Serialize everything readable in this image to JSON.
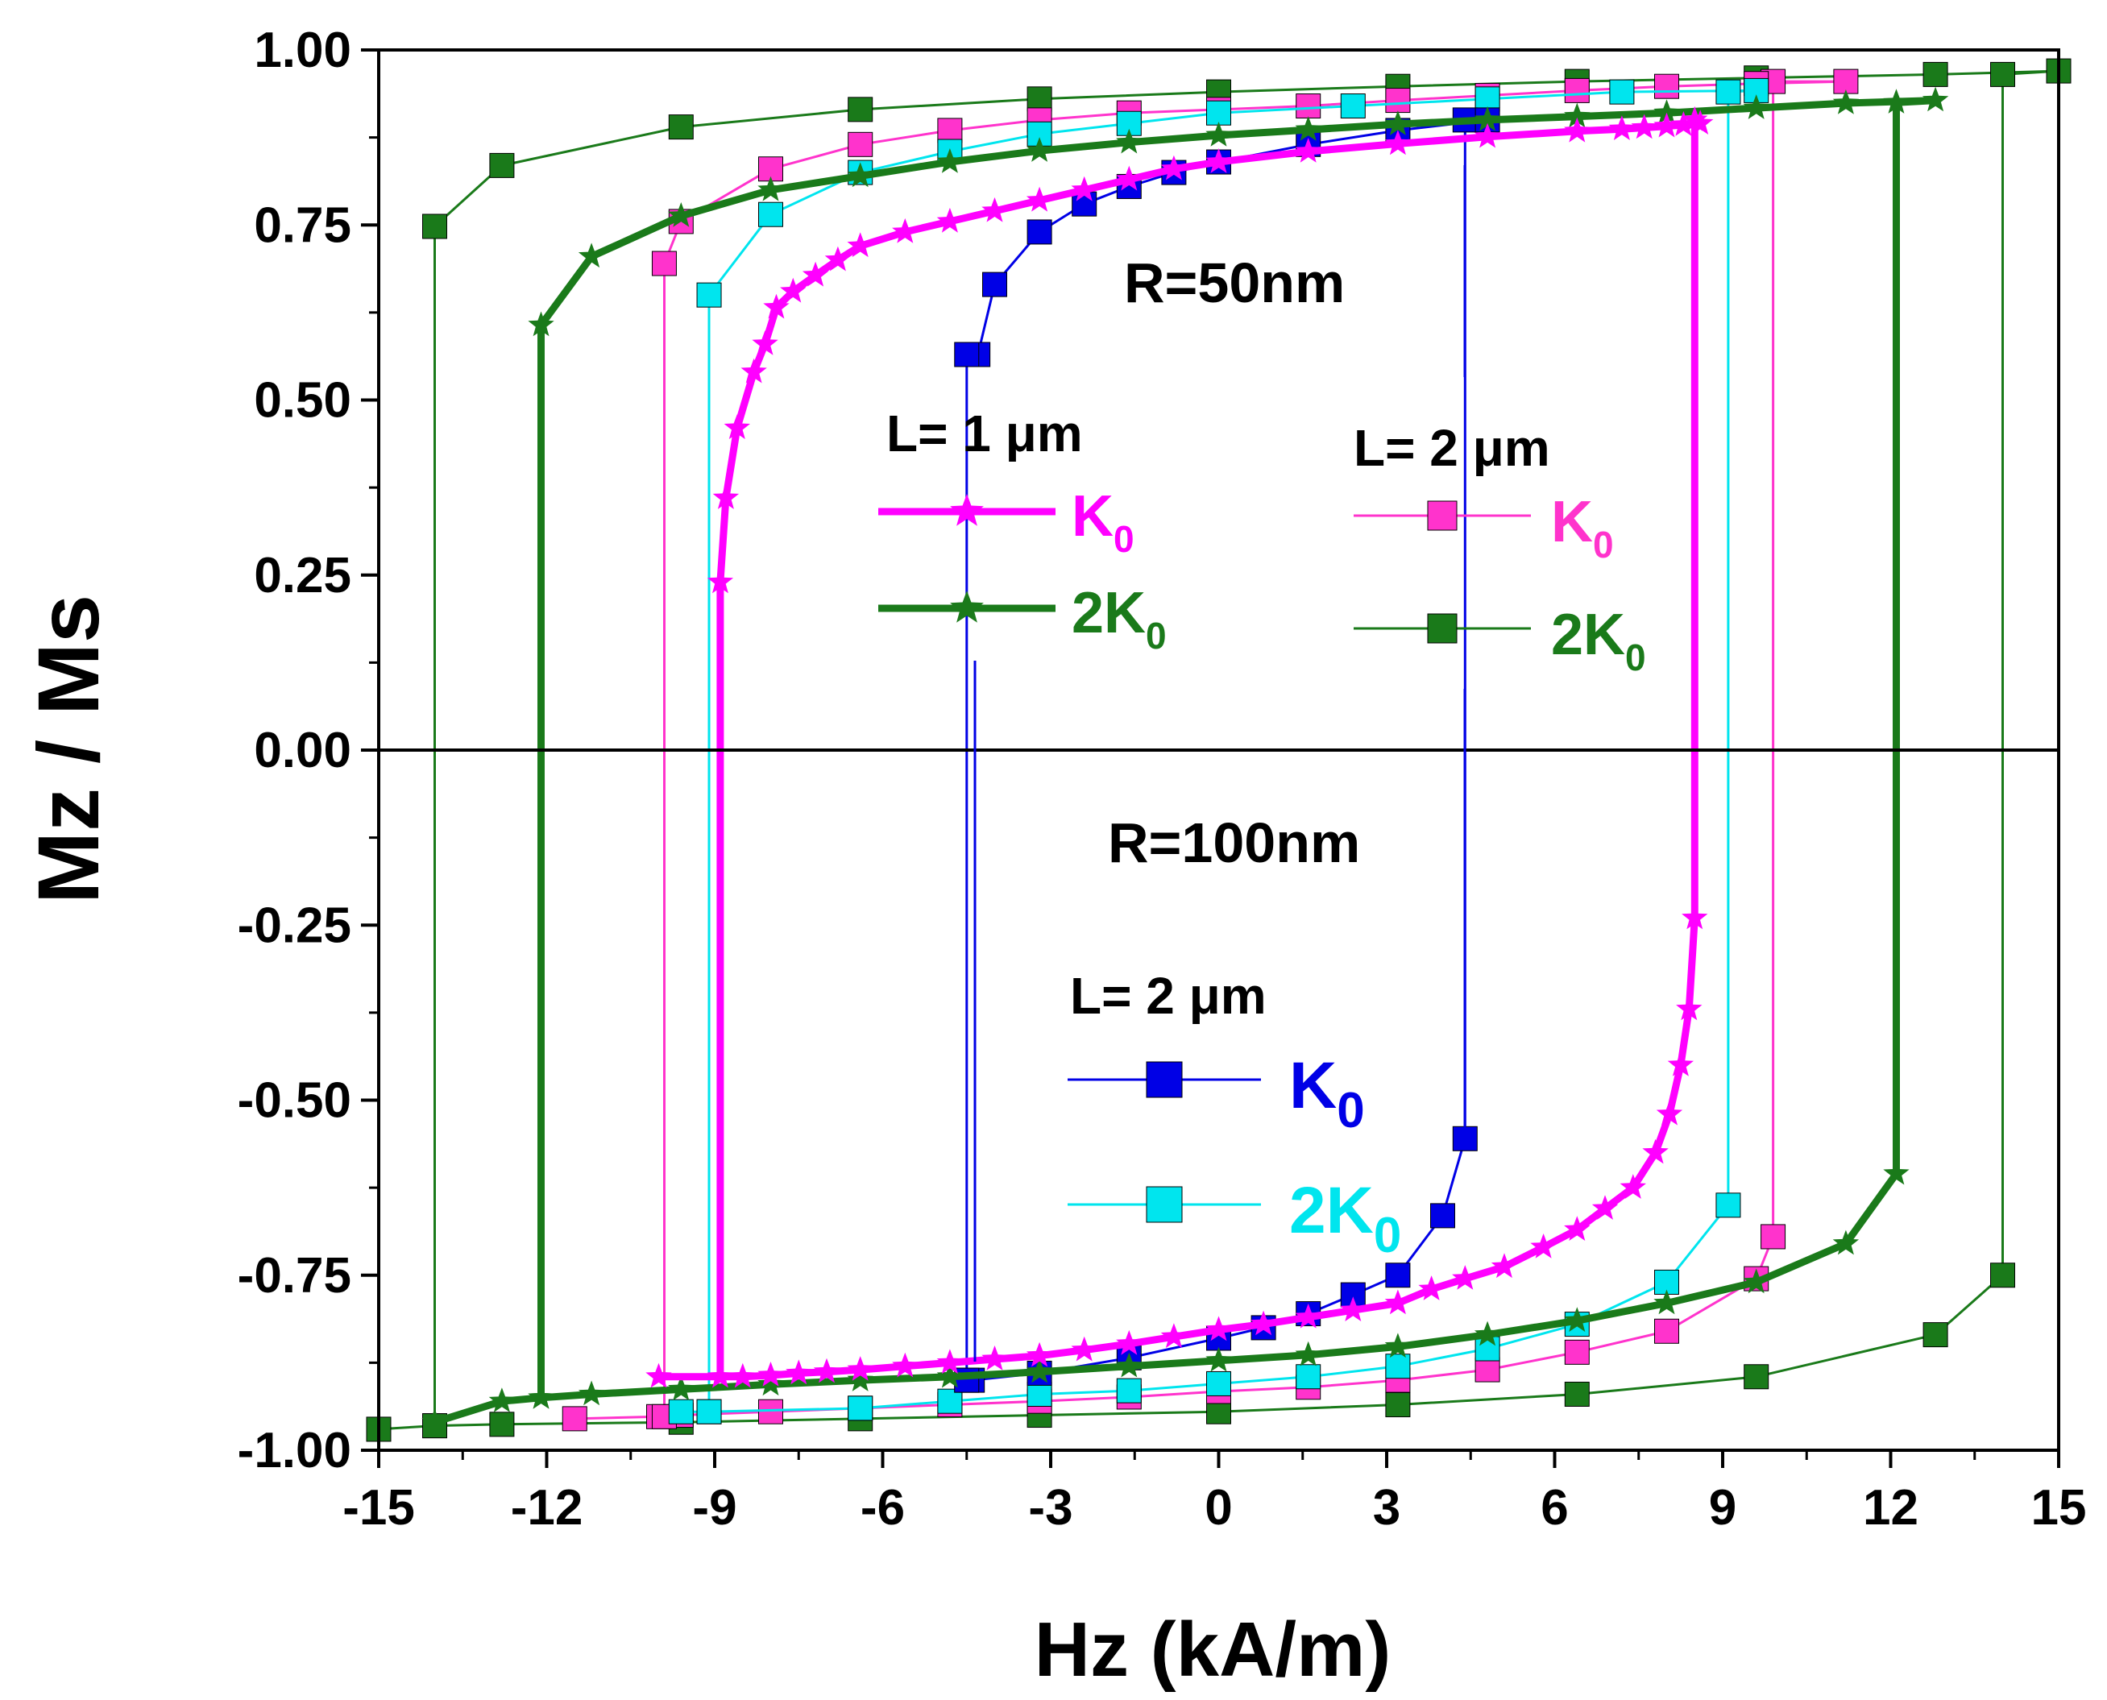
{
  "chart_data": {
    "type": "line",
    "xlabel": "Hz (kA/m)",
    "ylabel": "Mz / Ms",
    "xlim": [
      -15,
      15
    ],
    "ylim": [
      -1.0,
      1.0
    ],
    "xticks": [
      -15,
      -12,
      -9,
      -6,
      -3,
      0,
      3,
      6,
      9,
      12,
      15
    ],
    "xtick_labels": [
      "-15",
      "-12",
      "-9",
      "-6",
      "-3",
      "0",
      "3",
      "6",
      "9",
      "12",
      "15"
    ],
    "yticks": [
      1.0,
      0.75,
      0.5,
      0.25,
      0.0,
      -0.25,
      -0.5,
      -0.75,
      -1.0
    ],
    "ytick_labels": [
      "1.00",
      "0.75",
      "0.50",
      "0.25",
      "0.00",
      "-0.25",
      "-0.50",
      "-0.75",
      "-1.00"
    ],
    "annotations": {
      "r50": "R=50nm",
      "r100": "R=100nm",
      "group1_title": "L= 1 μm",
      "group2_title": "L= 2 μm",
      "group3_title": "L= 2 μm"
    },
    "series": [
      {
        "name": "K0",
        "group": "R=50nm, L=1um",
        "color": "#ff00ff",
        "marker": "star",
        "stroke": 9,
        "label_main": "K",
        "label_sub": "0",
        "points": [
          [
            -10,
            -0.895
          ],
          [
            -8.5,
            -0.895
          ],
          [
            -8,
            -0.893
          ],
          [
            -7.5,
            -0.89
          ],
          [
            -7,
            -0.888
          ],
          [
            -6.4,
            -0.885
          ],
          [
            -5.6,
            -0.88
          ],
          [
            -4.8,
            -0.875
          ],
          [
            -4,
            -0.87
          ],
          [
            -3.2,
            -0.865
          ],
          [
            -2.4,
            -0.857
          ],
          [
            -1.6,
            -0.848
          ],
          [
            -0.8,
            -0.838
          ],
          [
            0,
            -0.828
          ],
          [
            0.8,
            -0.82
          ],
          [
            1.6,
            -0.81
          ],
          [
            2.4,
            -0.8
          ],
          [
            3.2,
            -0.79
          ],
          [
            3.8,
            -0.77
          ],
          [
            4.4,
            -0.755
          ],
          [
            5.1,
            -0.738
          ],
          [
            5.8,
            -0.71
          ],
          [
            6.4,
            -0.685
          ],
          [
            6.9,
            -0.655
          ],
          [
            7.4,
            -0.625
          ],
          [
            7.8,
            -0.575
          ],
          [
            8.05,
            -0.52
          ],
          [
            8.25,
            -0.45
          ],
          [
            8.4,
            -0.37
          ],
          [
            8.5,
            -0.24
          ],
          [
            8.5,
            0.9
          ],
          [
            8.6,
            0.895
          ],
          [
            8.3,
            0.893
          ],
          [
            8,
            0.891
          ],
          [
            7.6,
            0.889
          ],
          [
            7.2,
            0.887
          ],
          [
            6.4,
            0.884
          ],
          [
            4.8,
            0.876
          ],
          [
            3.2,
            0.866
          ],
          [
            1.6,
            0.855
          ],
          [
            0,
            0.84
          ],
          [
            -0.8,
            0.83
          ],
          [
            -1.6,
            0.815
          ],
          [
            -2.4,
            0.8
          ],
          [
            -3.2,
            0.785
          ],
          [
            -4,
            0.77
          ],
          [
            -4.8,
            0.755
          ],
          [
            -5.6,
            0.74
          ],
          [
            -6.4,
            0.72
          ],
          [
            -6.8,
            0.7
          ],
          [
            -7.2,
            0.678
          ],
          [
            -7.6,
            0.655
          ],
          [
            -7.9,
            0.632
          ],
          [
            -8.1,
            0.58
          ],
          [
            -8.3,
            0.54
          ],
          [
            -8.6,
            0.46
          ],
          [
            -8.8,
            0.36
          ],
          [
            -8.9,
            0.24
          ],
          [
            -8.9,
            -0.895
          ]
        ]
      },
      {
        "name": "2K0",
        "group": "R=50nm, L=1um",
        "color": "#1a7a1a",
        "marker": "star",
        "stroke": 9,
        "label_main": "2K",
        "label_sub": "0",
        "points": [
          [
            -14,
            -0.96
          ],
          [
            -12.8,
            -0.93
          ],
          [
            -12.1,
            -0.925
          ],
          [
            -11.2,
            -0.92
          ],
          [
            -9.6,
            -0.913
          ],
          [
            -8,
            -0.906
          ],
          [
            -6.4,
            -0.9
          ],
          [
            -4.8,
            -0.895
          ],
          [
            -3.2,
            -0.888
          ],
          [
            -1.6,
            -0.88
          ],
          [
            0,
            -0.872
          ],
          [
            1.6,
            -0.864
          ],
          [
            3.2,
            -0.852
          ],
          [
            4.8,
            -0.835
          ],
          [
            6.4,
            -0.815
          ],
          [
            8,
            -0.79
          ],
          [
            9.6,
            -0.76
          ],
          [
            11.2,
            -0.705
          ],
          [
            12.1,
            -0.605
          ],
          [
            12.1,
            0.925
          ],
          [
            12.8,
            0.928
          ],
          [
            11.2,
            0.924
          ],
          [
            9.6,
            0.917
          ],
          [
            8,
            0.91
          ],
          [
            6.4,
            0.905
          ],
          [
            4.8,
            0.9
          ],
          [
            3.2,
            0.894
          ],
          [
            1.6,
            0.886
          ],
          [
            0,
            0.878
          ],
          [
            -1.6,
            0.868
          ],
          [
            -3.2,
            0.856
          ],
          [
            -4.8,
            0.84
          ],
          [
            -6.4,
            0.82
          ],
          [
            -8,
            0.8
          ],
          [
            -9.6,
            0.763
          ],
          [
            -11.2,
            0.705
          ],
          [
            -12.1,
            0.607
          ],
          [
            -12.1,
            -0.925
          ]
        ]
      },
      {
        "name": "K0",
        "group": "R=50nm, L=2um",
        "color": "#ff33cc",
        "marker": "square",
        "stroke": 3,
        "label_main": "K",
        "label_sub": "0",
        "points": [
          [
            -11.5,
            -0.955
          ],
          [
            -10,
            -0.952
          ],
          [
            -9.6,
            -0.95
          ],
          [
            -8,
            -0.945
          ],
          [
            -6.4,
            -0.94
          ],
          [
            -4.8,
            -0.935
          ],
          [
            -3.2,
            -0.93
          ],
          [
            -1.6,
            -0.924
          ],
          [
            0,
            -0.916
          ],
          [
            1.6,
            -0.91
          ],
          [
            3.2,
            -0.9
          ],
          [
            4.8,
            -0.885
          ],
          [
            6.4,
            -0.86
          ],
          [
            8,
            -0.83
          ],
          [
            9.6,
            -0.755
          ],
          [
            9.9,
            -0.695
          ],
          [
            9.9,
            0.955
          ],
          [
            11.2,
            0.955
          ],
          [
            9.6,
            0.952
          ],
          [
            8,
            0.948
          ],
          [
            6.4,
            0.942
          ],
          [
            4.8,
            0.935
          ],
          [
            3.2,
            0.928
          ],
          [
            1.6,
            0.92
          ],
          [
            0,
            0.915
          ],
          [
            -1.6,
            0.91
          ],
          [
            -3.2,
            0.9
          ],
          [
            -4.8,
            0.885
          ],
          [
            -6.4,
            0.865
          ],
          [
            -8,
            0.83
          ],
          [
            -9.6,
            0.755
          ],
          [
            -9.9,
            0.695
          ],
          [
            -9.9,
            -0.952
          ]
        ]
      },
      {
        "name": "2K0",
        "group": "R=50nm, L=2um",
        "color": "#1a7a1a",
        "marker": "square",
        "stroke": 3,
        "label_main": "2K",
        "label_sub": "0",
        "points": [
          [
            -15,
            -0.97
          ],
          [
            -14,
            -0.965
          ],
          [
            -12.8,
            -0.963
          ],
          [
            -9.6,
            -0.96
          ],
          [
            -6.4,
            -0.955
          ],
          [
            -3.2,
            -0.95
          ],
          [
            0,
            -0.945
          ],
          [
            3.2,
            -0.935
          ],
          [
            6.4,
            -0.92
          ],
          [
            9.6,
            -0.895
          ],
          [
            12.8,
            -0.835
          ],
          [
            14,
            -0.75
          ],
          [
            14,
            0.965
          ],
          [
            15,
            0.97
          ],
          [
            12.8,
            0.965
          ],
          [
            9.6,
            0.96
          ],
          [
            6.4,
            0.955
          ],
          [
            3.2,
            0.948
          ],
          [
            0,
            0.94
          ],
          [
            -3.2,
            0.93
          ],
          [
            -6.4,
            0.915
          ],
          [
            -9.6,
            0.89
          ],
          [
            -12.8,
            0.835
          ],
          [
            -14,
            0.748
          ],
          [
            -14,
            -0.965
          ]
        ]
      },
      {
        "name": "K0",
        "group": "R=100nm, L=2um",
        "color": "#0000e6",
        "marker": "square",
        "stroke": 3,
        "label_main": "K",
        "label_sub": "0",
        "points": [
          [
            -4.5,
            -0.9
          ],
          [
            -4.4,
            -0.9
          ],
          [
            -3.2,
            -0.89
          ],
          [
            -1.6,
            -0.868
          ],
          [
            0,
            -0.84
          ],
          [
            0.8,
            -0.825
          ],
          [
            1.6,
            -0.805
          ],
          [
            2.4,
            -0.778
          ],
          [
            3.2,
            -0.75
          ],
          [
            4,
            -0.665
          ],
          [
            4.4,
            -0.555
          ],
          [
            4.4,
            0.9
          ],
          [
            4.8,
            0.9
          ],
          [
            3.2,
            0.885
          ],
          [
            1.6,
            0.865
          ],
          [
            0,
            0.84
          ],
          [
            -0.8,
            0.825
          ],
          [
            -1.6,
            0.805
          ],
          [
            -2.4,
            0.78
          ],
          [
            -3.2,
            0.74
          ],
          [
            -4,
            0.665
          ],
          [
            -4.3,
            0.565
          ],
          [
            -4.5,
            0.565
          ],
          [
            -4.5,
            -0.9
          ]
        ]
      },
      {
        "name": "2K0",
        "group": "R=100nm, L=2um",
        "color": "#00e5ee",
        "marker": "square",
        "stroke": 3,
        "label_main": "2K",
        "label_sub": "0",
        "points": [
          [
            -9.6,
            -0.945
          ],
          [
            -9.1,
            -0.945
          ],
          [
            -6.4,
            -0.94
          ],
          [
            -4.8,
            -0.93
          ],
          [
            -3.2,
            -0.92
          ],
          [
            -1.6,
            -0.915
          ],
          [
            0,
            -0.905
          ],
          [
            1.6,
            -0.895
          ],
          [
            3.2,
            -0.88
          ],
          [
            4.8,
            -0.855
          ],
          [
            6.4,
            -0.82
          ],
          [
            8,
            -0.76
          ],
          [
            9.1,
            -0.65
          ],
          [
            9.1,
            0.94
          ],
          [
            9.6,
            0.942
          ],
          [
            7.2,
            0.94
          ],
          [
            4.8,
            0.93
          ],
          [
            2.4,
            0.92
          ],
          [
            0,
            0.91
          ],
          [
            -1.6,
            0.895
          ],
          [
            -3.2,
            0.88
          ],
          [
            -4.8,
            0.855
          ],
          [
            -6.4,
            0.825
          ],
          [
            -8,
            0.765
          ],
          [
            -9.1,
            0.65
          ],
          [
            -9.1,
            -0.945
          ]
        ]
      }
    ]
  }
}
